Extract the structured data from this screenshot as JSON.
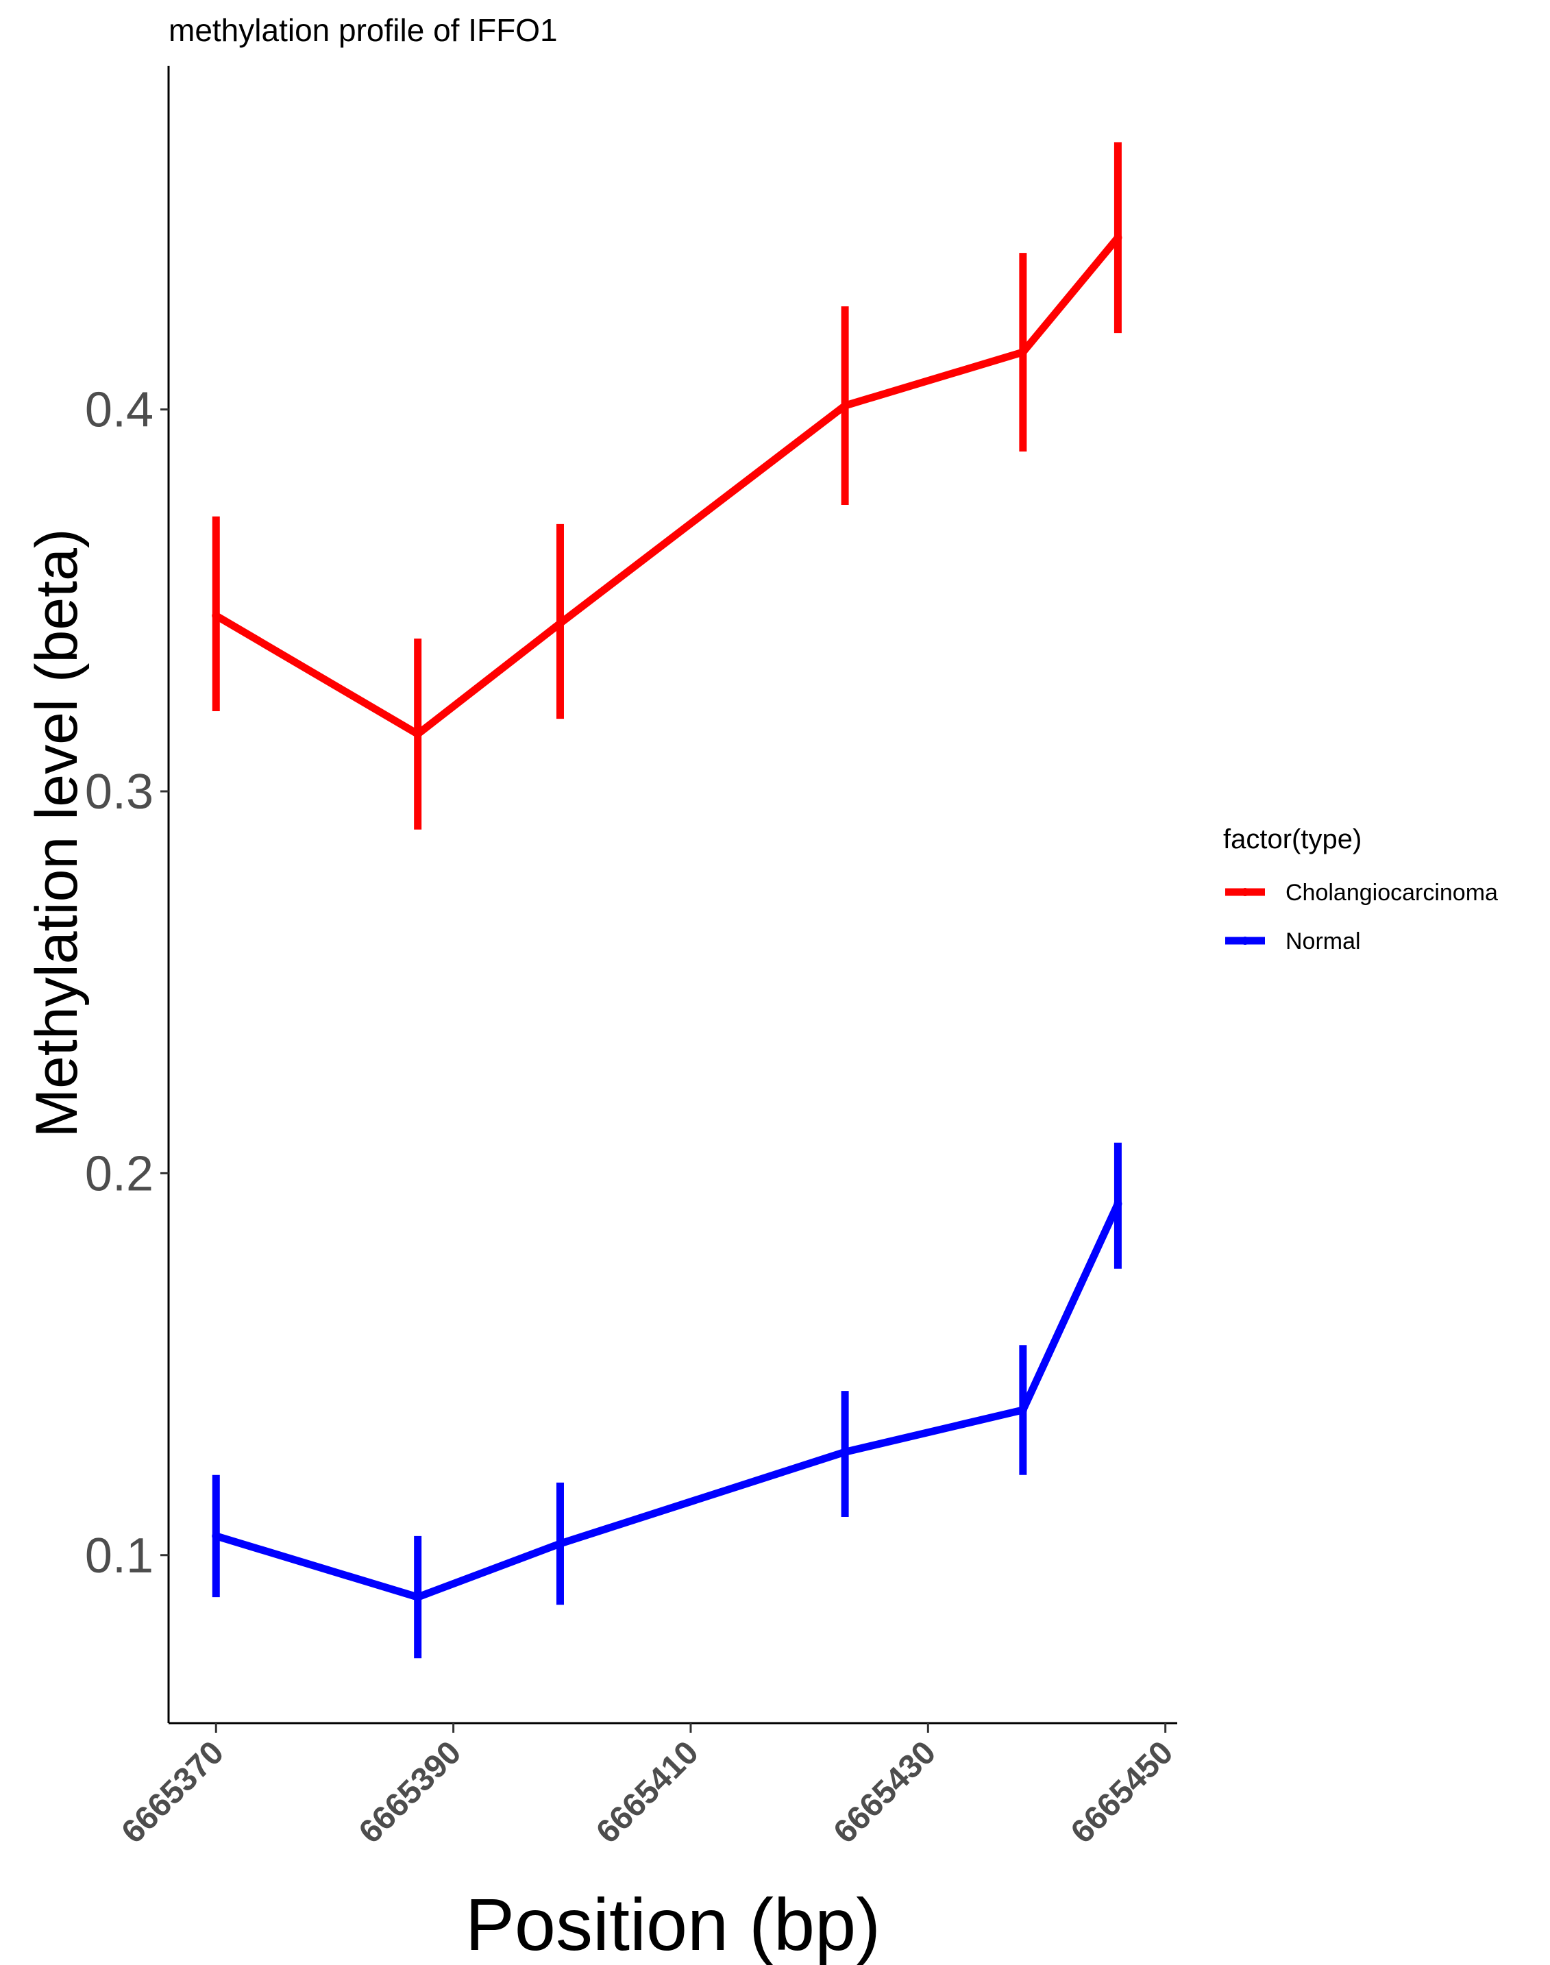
{
  "chart_data": {
    "type": "line",
    "title": "methylation profile of IFFO1",
    "xlabel": "Position (bp)",
    "ylabel": "Methylation level (beta)",
    "xlim": [
      6665366,
      6665451
    ],
    "ylim": [
      0.056,
      0.49
    ],
    "x_ticks": [
      6665370,
      6665390,
      6665410,
      6665430,
      6665450
    ],
    "x_tick_labels": [
      "6665370",
      "6665390",
      "6665410",
      "6665430",
      "6665450"
    ],
    "y_ticks": [
      0.1,
      0.2,
      0.3,
      0.4
    ],
    "y_tick_labels": [
      "0.1",
      "0.2",
      "0.3",
      "0.4"
    ],
    "grid": false,
    "legend": {
      "title": "factor(type)",
      "position": "right"
    },
    "series": [
      {
        "name": "Cholangiocarcinoma",
        "color": "#ff0000",
        "points": [
          {
            "x": 6665370,
            "y": 0.346,
            "ymin": 0.321,
            "ymax": 0.372
          },
          {
            "x": 6665387,
            "y": 0.315,
            "ymin": 0.29,
            "ymax": 0.34
          },
          {
            "x": 6665399,
            "y": 0.344,
            "ymin": 0.319,
            "ymax": 0.37
          },
          {
            "x": 6665423,
            "y": 0.401,
            "ymin": 0.375,
            "ymax": 0.427
          },
          {
            "x": 6665438,
            "y": 0.415,
            "ymin": 0.389,
            "ymax": 0.441
          },
          {
            "x": 6665446,
            "y": 0.445,
            "ymin": 0.42,
            "ymax": 0.47
          }
        ]
      },
      {
        "name": "Normal",
        "color": "#0000ff",
        "points": [
          {
            "x": 6665370,
            "y": 0.105,
            "ymin": 0.089,
            "ymax": 0.121
          },
          {
            "x": 6665387,
            "y": 0.089,
            "ymin": 0.073,
            "ymax": 0.105
          },
          {
            "x": 6665399,
            "y": 0.103,
            "ymin": 0.087,
            "ymax": 0.119
          },
          {
            "x": 6665423,
            "y": 0.127,
            "ymin": 0.11,
            "ymax": 0.143
          },
          {
            "x": 6665438,
            "y": 0.138,
            "ymin": 0.121,
            "ymax": 0.155
          },
          {
            "x": 6665446,
            "y": 0.192,
            "ymin": 0.175,
            "ymax": 0.208
          }
        ]
      }
    ]
  }
}
